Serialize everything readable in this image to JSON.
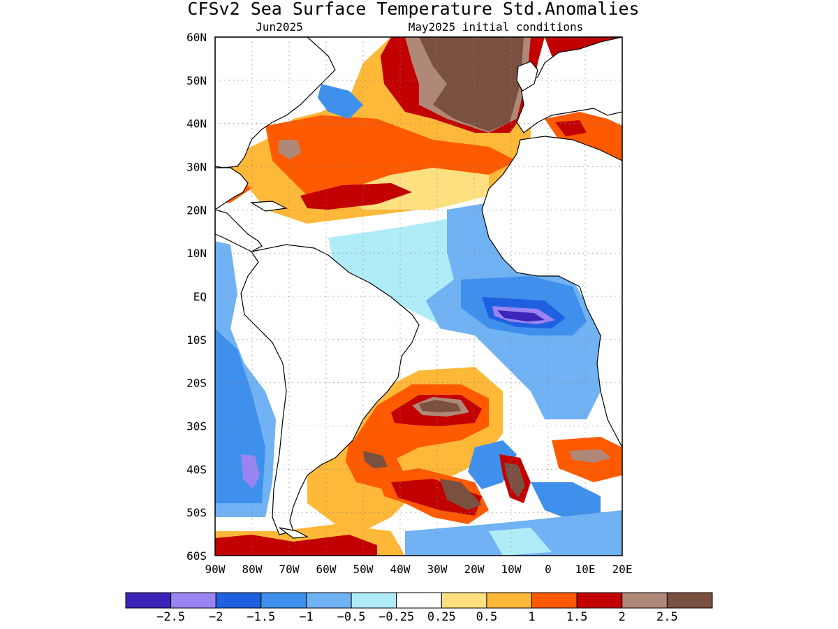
{
  "title": "CFSv2 Sea Surface Temperature Std.Anomalies",
  "subtitle_left": "Jun2025",
  "subtitle_right": "May2025 initial conditions",
  "map": {
    "lon_labels": [
      "90W",
      "80W",
      "70W",
      "60W",
      "50W",
      "40W",
      "30W",
      "20W",
      "10W",
      "0",
      "10E",
      "20E"
    ],
    "lat_labels": [
      "60N",
      "50N",
      "40N",
      "30N",
      "20N",
      "10N",
      "EQ",
      "10S",
      "20S",
      "30S",
      "40S",
      "50S",
      "60S"
    ],
    "lon_range": [
      -90,
      20
    ],
    "lat_range": [
      -60,
      60
    ],
    "land_color": "#ffffff",
    "grid": "dotted"
  },
  "colorbar": {
    "colors": [
      "#3a25b8",
      "#9a84f2",
      "#1f60e0",
      "#3e90ec",
      "#70b2f4",
      "#b0ecf8",
      "#ffffff",
      "#ffe080",
      "#ffb838",
      "#ff5a00",
      "#c20000",
      "#b08878",
      "#7a5040"
    ],
    "labels": [
      "−2.5",
      "−2",
      "−1.5",
      "−1",
      "−0.5",
      "−0.25",
      "0.25",
      "0.5",
      "1",
      "1.5",
      "2",
      "2.5"
    ]
  }
}
